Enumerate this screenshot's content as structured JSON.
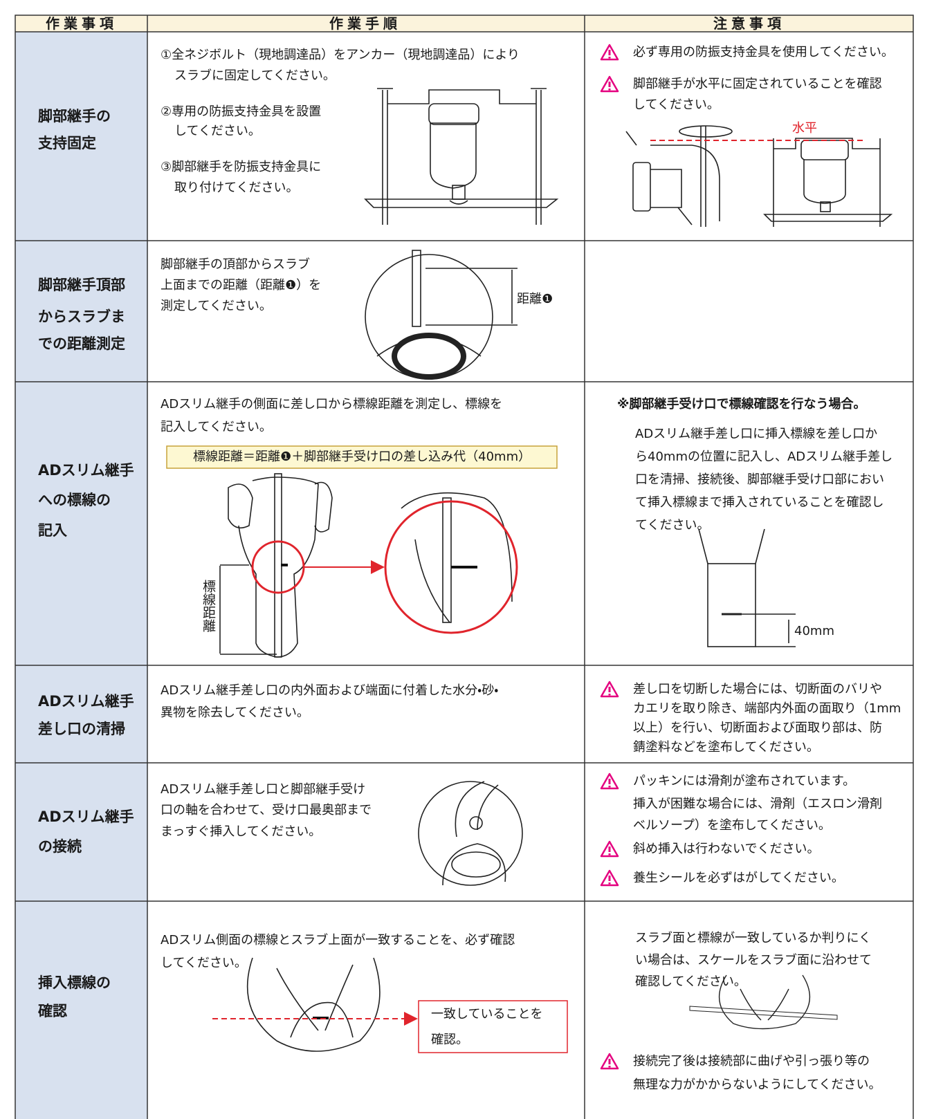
{
  "header": [
    "作業事項",
    "作業手順",
    "注意事項"
  ],
  "rows": [
    {
      "item": [
        "脚部継手の",
        "支持固定"
      ],
      "procedure": [
        "①全ネジボルト（現地調達品）をアンカー（現地調達品）により",
        "スラブに固定してください。",
        "②専用の防振支持金具を設置",
        "してください。",
        "③脚部継手を防振支持金具に",
        "取り付けてください。"
      ],
      "cautions": [
        [
          "必ず専用の防振支持金具を使用してください。"
        ],
        [
          "脚部継手が水平に固定されていることを確認",
          "してください。"
        ]
      ],
      "figure_label": "水平"
    },
    {
      "item": [
        "脚部継手頂部",
        "からスラブま",
        "での距離測定"
      ],
      "procedure": [
        "脚部継手の頂部からスラブ",
        "上面までの距離（距離❶）を",
        "測定してください。"
      ],
      "figure_label": "距離❶"
    },
    {
      "item": [
        "ADスリム継手",
        "への標線の",
        "記入"
      ],
      "procedure": [
        "ADスリム継手の側面に差し口から標線距離を測定し、標線を",
        "記入してください。"
      ],
      "formula": "標線距離＝距離❶＋脚部継手受け口の差し込み代（40mm）",
      "figure_label": "標線距離",
      "note_heading": "※脚部継手受け口で標線確認を行なう場合。",
      "note": [
        "ADスリム継手差し口に挿入標線を差し口か",
        "ら40mmの位置に記入し、ADスリム継手差し",
        "口を清掃、接続後、脚部継手受け口部におい",
        "て挿入標線まで挿入されていることを確認し",
        "てください。"
      ],
      "note_figure_label": "40mm"
    },
    {
      "item": [
        "ADスリム継手",
        "差し口の清掃"
      ],
      "procedure": [
        "ADスリム継手差し口の内外面および端面に付着した水分・砂・",
        "異物を除去してください。"
      ],
      "cautions": [
        [
          "差し口を切断した場合には、切断面のバリや",
          "カエリを取り除き、端部内外面の面取り（1mm",
          "以上）を行い、切断面および面取り部は、防",
          "錆塗料などを塗布してください。"
        ]
      ]
    },
    {
      "item": [
        "ADスリム継手",
        "の接続"
      ],
      "procedure": [
        "ADスリム継手差し口と脚部継手受け",
        "口の軸を合わせて、受け口最奥部まで",
        "まっすぐ挿入してください。"
      ],
      "cautions": [
        [
          "パッキンには滑剤が塗布されています。",
          "挿入が困難な場合には、滑剤（エスロン滑剤",
          "ベルソープ）を塗布してください。"
        ],
        [
          "斜め挿入は行わないでください。"
        ],
        [
          "養生シールを必ずはがしてください。"
        ]
      ]
    },
    {
      "item": [
        "挿入標線の",
        "確認"
      ],
      "procedure": [
        "ADスリム側面の標線とスラブ上面が一致することを、必ず確認",
        "してください。"
      ],
      "callout": [
        "一致していることを",
        "確認。"
      ],
      "note": [
        "スラブ面と標線が一致しているか判りにく",
        "い場合は、スケールをスラブ面に沿わせて",
        "確認してください。"
      ],
      "cautions": [
        [
          "接続完了後は接続部に曲げや引っ張り等の",
          "無理な力がかからないようにしてください。"
        ]
      ]
    }
  ]
}
